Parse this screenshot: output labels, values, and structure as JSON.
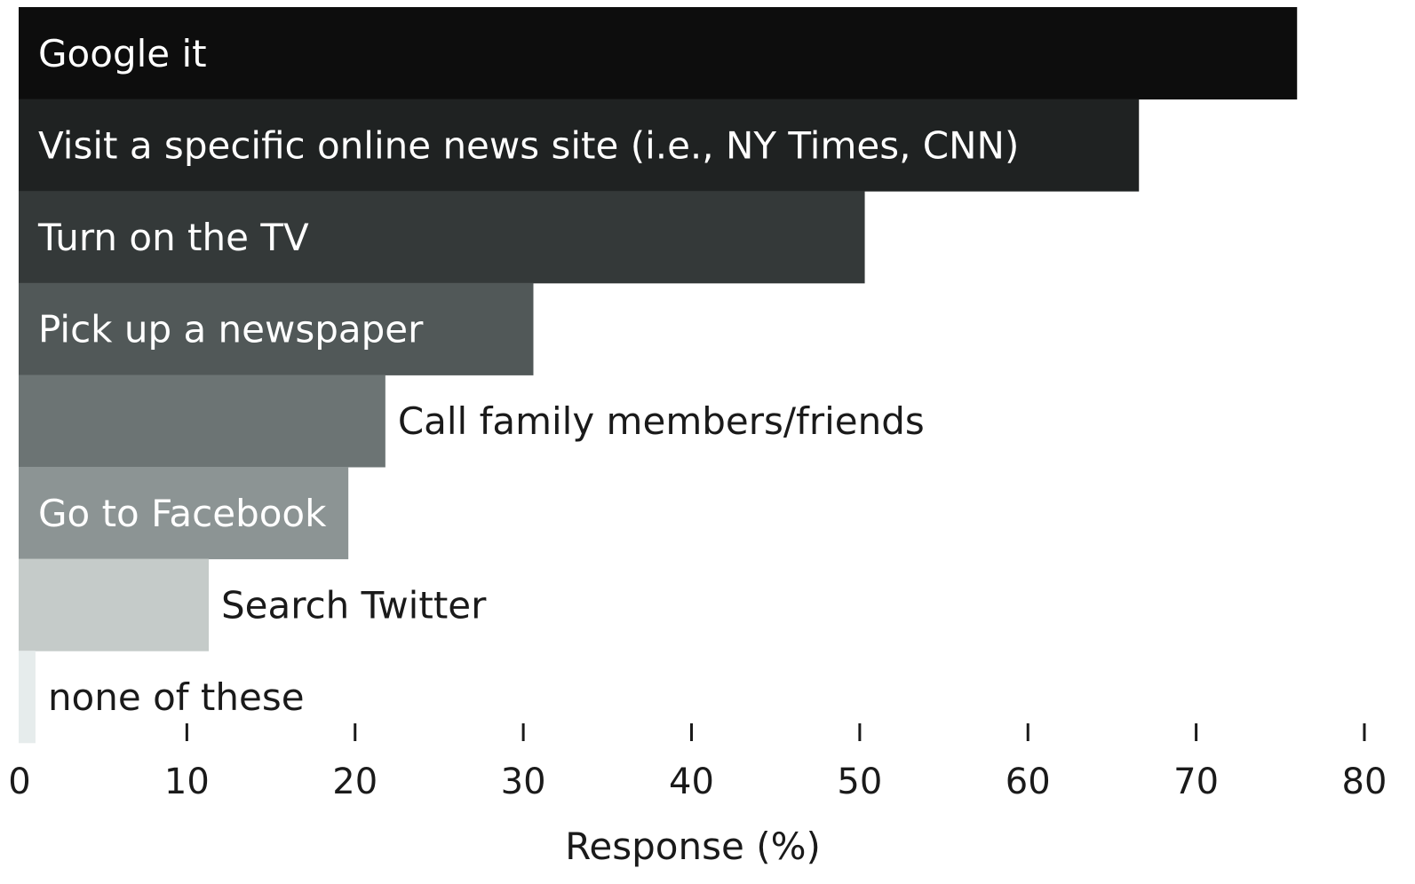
{
  "chart_data": {
    "type": "bar",
    "orientation": "horizontal",
    "categories": [
      "Google it",
      "Visit a specific online news site (i.e., NY Times, CNN)",
      "Turn on the TV",
      "Pick up a newspaper",
      "Call family members/friends",
      "Go to Facebook",
      "Search Twitter",
      "none of these"
    ],
    "values": [
      76,
      66.6,
      50.3,
      30.6,
      21.8,
      19.6,
      11.3,
      1
    ],
    "colors": [
      "#0d0d0d",
      "#1f2222",
      "#343939",
      "#515858",
      "#6c7474",
      "#8c9494",
      "#c5cbc9",
      "#e6ecec"
    ],
    "title": "",
    "xlabel": "Response (%)",
    "ylabel": "",
    "xlim": [
      0,
      80
    ],
    "xticks": [
      "0",
      "10",
      "20",
      "30",
      "40",
      "50",
      "60",
      "70",
      "80"
    ],
    "grid": false,
    "legend": "none",
    "label_placement": "inside-when-fits"
  }
}
